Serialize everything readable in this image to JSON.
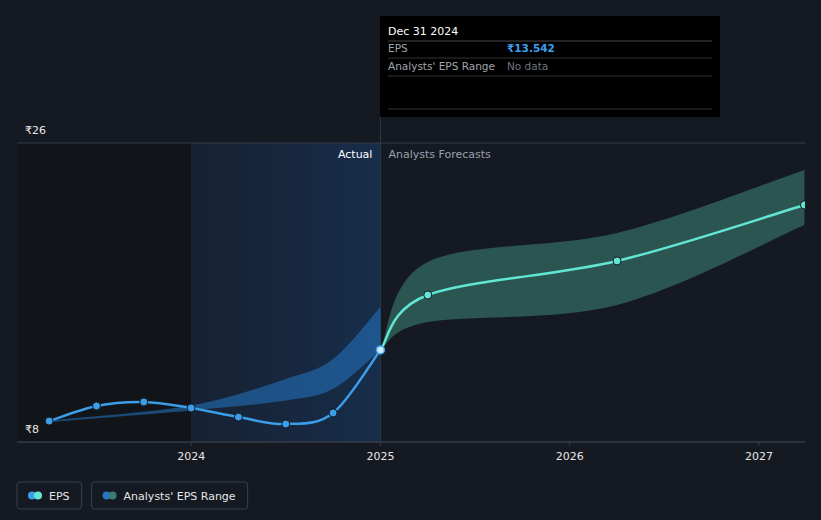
{
  "chart_data": {
    "type": "line",
    "xlim": [
      2023.08,
      2027.243
    ],
    "xticks": [
      2024,
      2025,
      2026,
      2027
    ],
    "ylim": [
      8,
      26
    ],
    "yticks": [
      {
        "value": 8,
        "label": "₹8"
      },
      {
        "value": 26,
        "label": "₹26"
      }
    ],
    "grid": true,
    "legend": "bottom-left",
    "series": [
      {
        "name": "EPS",
        "color": "#3a9ee8",
        "marker": "circle",
        "line_style": "solid",
        "label": "Actual",
        "x": [
          2023.25,
          2023.5,
          2023.75,
          2024.0,
          2024.25,
          2024.5,
          2024.75,
          2025.0
        ],
        "values": [
          9.26,
          10.17,
          10.41,
          10.05,
          9.5,
          9.08,
          9.75,
          13.542
        ],
        "forecast": {
          "label": "Analysts Forecasts",
          "color": "#62e6d3",
          "x": [
            2025.0,
            2025.25,
            2026.25,
            2027.24
          ],
          "values": [
            13.542,
            16.85,
            18.9,
            22.27
          ]
        }
      },
      {
        "name": "Analysts' EPS Range",
        "type": "area",
        "color": "#3b7d72",
        "x": [
          2025.0,
          2025.25,
          2026.25,
          2027.24
        ],
        "low": [
          13.542,
          15.22,
          16.25,
          21.06
        ],
        "high": [
          13.542,
          18.84,
          20.58,
          24.38
        ],
        "past": {
          "color": "#2577c4",
          "x": [
            2023.25,
            2024.0,
            2024.5,
            2024.75,
            2025.0
          ],
          "low": [
            9.2,
            9.9,
            10.5,
            11.2,
            13.542
          ],
          "high": [
            9.3,
            10.2,
            11.8,
            13.0,
            16.13
          ]
        }
      }
    ],
    "tooltip": {
      "title": "Dec 31 2024",
      "rows": [
        {
          "label": "EPS",
          "value": "₹13.542"
        },
        {
          "label": "Analysts' EPS Range",
          "value": "No data"
        }
      ]
    }
  }
}
